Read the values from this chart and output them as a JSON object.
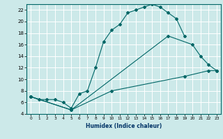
{
  "title": "",
  "xlabel": "Humidex (Indice chaleur)",
  "bg_color": "#cce9e9",
  "grid_color": "#ffffff",
  "line_color": "#006666",
  "xlim": [
    -0.5,
    23.5
  ],
  "ylim": [
    4,
    23
  ],
  "xticks": [
    0,
    1,
    2,
    3,
    4,
    5,
    6,
    7,
    8,
    9,
    10,
    11,
    12,
    13,
    14,
    15,
    16,
    17,
    18,
    19,
    20,
    21,
    22,
    23
  ],
  "yticks": [
    4,
    6,
    8,
    10,
    12,
    14,
    16,
    18,
    20,
    22
  ],
  "s1_x": [
    0,
    1,
    2,
    3,
    4,
    5,
    6,
    7,
    8,
    9,
    10,
    11,
    12,
    13,
    14,
    15,
    16,
    17,
    18,
    19
  ],
  "s1_y": [
    7.0,
    6.5,
    6.5,
    6.5,
    6.0,
    5.0,
    7.5,
    8.0,
    12.0,
    16.5,
    18.5,
    19.5,
    21.5,
    22.0,
    22.5,
    23.0,
    22.5,
    21.5,
    20.5,
    17.5
  ],
  "s2_x": [
    0,
    5,
    17,
    20,
    21,
    22,
    23
  ],
  "s2_y": [
    7.0,
    4.7,
    17.5,
    16.0,
    14.0,
    12.5,
    11.5
  ],
  "s3_x": [
    0,
    5,
    10,
    19,
    22,
    23
  ],
  "s3_y": [
    7.0,
    4.7,
    8.0,
    10.5,
    11.5,
    11.5
  ]
}
